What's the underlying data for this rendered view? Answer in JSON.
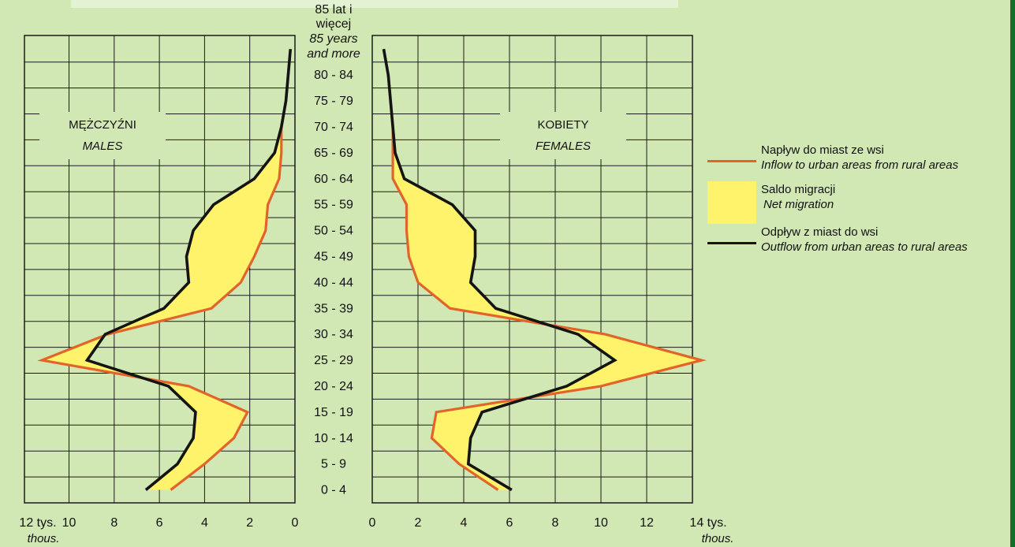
{
  "colors": {
    "background": "#d2e8b4",
    "inflow": "#e2642a",
    "outflow": "#141414",
    "net": "#fff36c",
    "grid": "#1a1a1a"
  },
  "age_groups": [
    "0 - 4",
    "5 - 9",
    "10 - 14",
    "15 - 19",
    "20 - 24",
    "25 - 29",
    "30 - 34",
    "35 - 39",
    "40 - 44",
    "45 - 49",
    "50 - 54",
    "55 - 59",
    "60 - 64",
    "65 - 69",
    "70 - 74",
    "75 - 79",
    "80 - 84"
  ],
  "age_top": {
    "line1": "85 lat i",
    "line2": "więcej",
    "line3": "85 years",
    "line4": "and more"
  },
  "males": {
    "title": "MĘŻCZYŹNI",
    "subtitle": "MALES"
  },
  "females": {
    "title": "KOBIETY",
    "subtitle": "FEMALES"
  },
  "axes": {
    "left_ticks": [
      "12 tys.",
      "10",
      "8",
      "6",
      "4",
      "2",
      "0"
    ],
    "right_ticks": [
      "0",
      "2",
      "4",
      "6",
      "8",
      "10",
      "12",
      "14 tys."
    ],
    "unit_en": "thous."
  },
  "legend": {
    "inflow": {
      "pl": "Napływ do miast ze wsi",
      "en": "Inflow to urban areas from rural areas"
    },
    "net": {
      "pl": "Saldo migracji",
      "en": "Net migration"
    },
    "outflow": {
      "pl": "Odpływ z miast do wsi",
      "en": "Outflow from urban areas to rural areas"
    }
  },
  "chart_data": {
    "type": "line",
    "y_categories": [
      "0 - 4",
      "5 - 9",
      "10 - 14",
      "15 - 19",
      "20 - 24",
      "25 - 29",
      "30 - 34",
      "35 - 39",
      "40 - 44",
      "45 - 49",
      "50 - 54",
      "55 - 59",
      "60 - 64",
      "65 - 69",
      "70 - 74",
      "75 - 79",
      "80 - 84",
      "85 lat i więcej / 85 years and more"
    ],
    "xlim_males": [
      12,
      0
    ],
    "xlim_females": [
      0,
      14
    ],
    "males": {
      "inflow": [
        5.5,
        4.0,
        2.7,
        2.1,
        4.7,
        11.2,
        8.3,
        3.7,
        2.4,
        1.8,
        1.3,
        1.2,
        0.7,
        0.6,
        0.6,
        0.4,
        0.3,
        0.2
      ],
      "outflow": [
        6.6,
        5.2,
        4.5,
        4.4,
        5.6,
        9.2,
        8.4,
        5.8,
        4.7,
        4.8,
        4.5,
        3.6,
        1.8,
        0.9,
        0.6,
        0.4,
        0.3,
        0.2
      ]
    },
    "females": {
      "inflow": [
        5.5,
        3.8,
        2.6,
        2.8,
        10.0,
        14.4,
        10.2,
        3.4,
        2.0,
        1.6,
        1.5,
        1.5,
        0.9,
        0.9,
        0.9,
        0.8,
        0.7,
        0.5
      ],
      "outflow": [
        6.1,
        4.2,
        4.3,
        4.8,
        8.5,
        10.6,
        9.0,
        5.4,
        4.3,
        4.5,
        4.5,
        3.5,
        1.4,
        1.0,
        0.9,
        0.8,
        0.7,
        0.5
      ]
    }
  }
}
